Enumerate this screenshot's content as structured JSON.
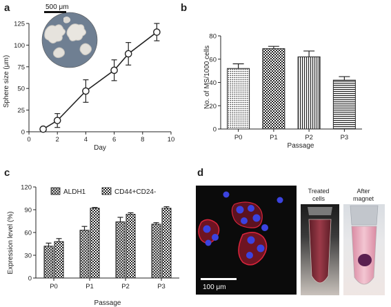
{
  "panels": {
    "a": "a",
    "b": "b",
    "c": "c",
    "d": "d"
  },
  "colors": {
    "ink": "#222222",
    "microscopy_bg": "#6f7f92",
    "fluor_bg": "#0b0b0b",
    "nucleus": "#3b43e0",
    "membrane": "#d8243a",
    "tube_liquid_treated": "#8a2f3c",
    "tube_liquid_magnet": "#e7a6b8"
  },
  "chart_data": [
    {
      "panel": "a",
      "type": "line",
      "x": [
        1,
        2,
        4,
        6,
        7,
        9
      ],
      "series": [
        {
          "values": [
            3,
            13,
            47,
            71,
            90,
            115
          ],
          "errors": [
            2,
            8,
            13,
            12,
            13,
            10
          ]
        }
      ],
      "xlabel": "Day",
      "ylabel": "Sphere size (μm)",
      "xlim": [
        0,
        10
      ],
      "ylim": [
        0,
        125
      ],
      "xticks": [
        "0",
        "2",
        "4",
        "6",
        "8",
        "10"
      ],
      "yticks": [
        "0",
        "25",
        "50",
        "75",
        "100",
        "125"
      ],
      "inset_scale_label": "500 μm",
      "grid": false
    },
    {
      "panel": "b",
      "type": "bar",
      "categories": [
        "P0",
        "P1",
        "P2",
        "P3"
      ],
      "series": [
        {
          "values": [
            52,
            69,
            62,
            42
          ],
          "errors": [
            4,
            2,
            5,
            3
          ]
        }
      ],
      "patterns": [
        "dots",
        "checker",
        "vertical",
        "horizontal"
      ],
      "xlabel": "Passage",
      "ylabel": "No. of MS/1000 cells",
      "ylim": [
        0,
        80
      ],
      "yticks": [
        "0",
        "20",
        "40",
        "60",
        "80"
      ],
      "grid": false
    },
    {
      "panel": "c",
      "type": "bar",
      "categories": [
        "P0",
        "P1",
        "P2",
        "P3"
      ],
      "series": [
        {
          "name": "ALDH1",
          "values": [
            42,
            63,
            74,
            71
          ],
          "errors": [
            4,
            5,
            6,
            2
          ],
          "pattern": "hatch"
        },
        {
          "name": "CD44+CD24-",
          "values": [
            48,
            92,
            84,
            92
          ],
          "errors": [
            4,
            1,
            2,
            2
          ],
          "pattern": "checker"
        }
      ],
      "xlabel": "Passage",
      "ylabel": "Expression level (%)",
      "ylim": [
        0,
        120
      ],
      "yticks": [
        "0",
        "30",
        "60",
        "90",
        "120"
      ],
      "legend": "top-left",
      "grid": false
    }
  ],
  "panel_d": {
    "scale_label": "100 μm",
    "tube1_label_line1": "Treated",
    "tube1_label_line2": "cells",
    "tube2_label_line1": "After",
    "tube2_label_line2": "magnet"
  }
}
